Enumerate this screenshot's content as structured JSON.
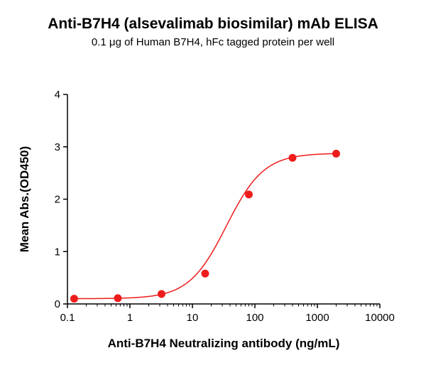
{
  "chart_data": {
    "type": "scatter",
    "title": "Anti-B7H4 (alsevalimab biosimilar) mAb ELISA",
    "subtitle": "0.1 μg of Human B7H4, hFc tagged protein per well",
    "xlabel": "Anti-B7H4 Neutralizing antibody (ng/mL)",
    "ylabel": "Mean Abs.(OD450)",
    "x_scale": "log",
    "xlim": [
      0.1,
      10000
    ],
    "ylim": [
      0,
      4
    ],
    "x_ticks": [
      {
        "value": 0.1,
        "label": "0.1"
      },
      {
        "value": 1,
        "label": "1"
      },
      {
        "value": 10,
        "label": "10"
      },
      {
        "value": 100,
        "label": "100"
      },
      {
        "value": 1000,
        "label": "1000"
      },
      {
        "value": 10000,
        "label": "10000"
      }
    ],
    "y_ticks": [
      {
        "value": 0,
        "label": "0"
      },
      {
        "value": 1,
        "label": "1"
      },
      {
        "value": 2,
        "label": "2"
      },
      {
        "value": 3,
        "label": "3"
      },
      {
        "value": 4,
        "label": "4"
      }
    ],
    "grid": false,
    "color": "#ee1c1c",
    "series": [
      {
        "x": [
          0.128,
          0.64,
          3.2,
          16,
          80,
          400,
          2000
        ],
        "y": [
          0.1,
          0.11,
          0.19,
          0.58,
          2.09,
          2.79,
          2.87
        ]
      }
    ],
    "fit_curve": true
  }
}
